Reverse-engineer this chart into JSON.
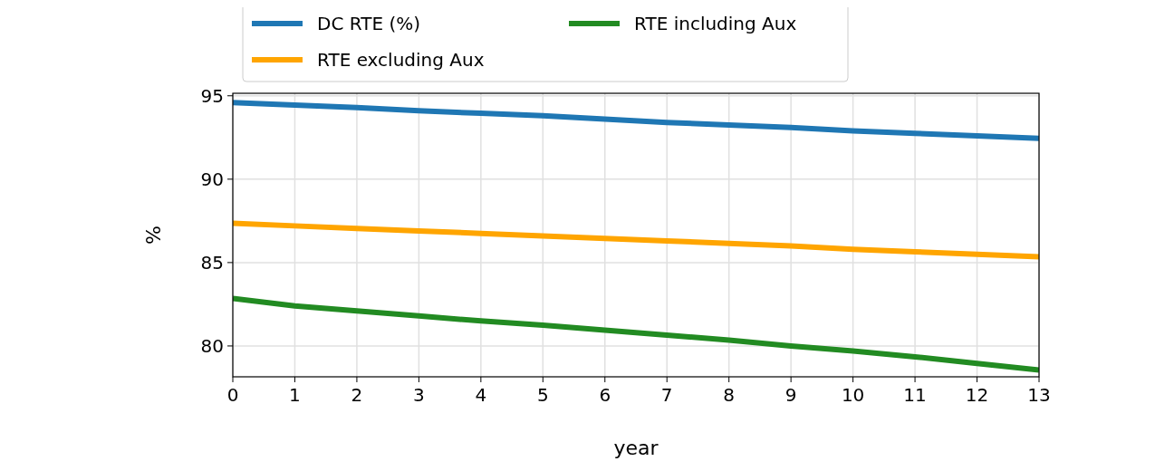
{
  "chart_data": {
    "type": "line",
    "xlabel": "year",
    "ylabel": "%",
    "x": [
      0,
      1,
      2,
      3,
      4,
      5,
      6,
      7,
      8,
      9,
      10,
      11,
      12,
      13
    ],
    "xlim": [
      0,
      13
    ],
    "xticks": [
      0,
      1,
      2,
      3,
      4,
      5,
      6,
      7,
      8,
      9,
      10,
      11,
      12,
      13
    ],
    "ylim": [
      78.15,
      95.15
    ],
    "yticks": [
      80,
      85,
      90,
      95
    ],
    "grid": true,
    "legend": "top",
    "series": [
      {
        "name": "DC RTE (%)",
        "color": "#1f77b4",
        "values": [
          94.6,
          94.45,
          94.3,
          94.1,
          93.95,
          93.8,
          93.6,
          93.4,
          93.25,
          93.1,
          92.9,
          92.75,
          92.6,
          92.45
        ]
      },
      {
        "name": "RTE excluding Aux",
        "color": "#ffa500",
        "values": [
          87.35,
          87.2,
          87.05,
          86.9,
          86.75,
          86.6,
          86.45,
          86.3,
          86.15,
          86.0,
          85.8,
          85.65,
          85.5,
          85.35
        ]
      },
      {
        "name": "RTE including Aux",
        "color": "#228b22",
        "values": [
          82.85,
          82.4,
          82.1,
          81.8,
          81.5,
          81.25,
          80.95,
          80.65,
          80.35,
          80.0,
          79.7,
          79.35,
          78.95,
          78.55
        ]
      }
    ]
  }
}
